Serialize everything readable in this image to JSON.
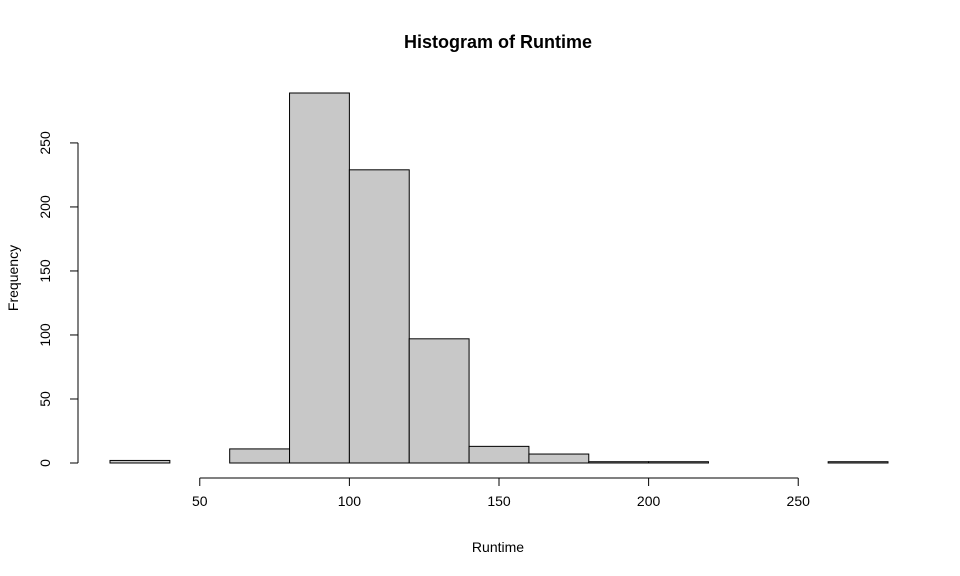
{
  "chart_data": {
    "type": "bar",
    "subtype": "histogram",
    "title": "Histogram of Runtime",
    "xlabel": "Runtime",
    "ylabel": "Frequency",
    "bin_edges": [
      20,
      40,
      60,
      80,
      100,
      120,
      140,
      160,
      180,
      200,
      220,
      240,
      260,
      280
    ],
    "values": [
      2,
      0,
      11,
      289,
      229,
      97,
      13,
      7,
      1,
      1,
      0,
      0,
      1
    ],
    "xlim": [
      20,
      280
    ],
    "ylim": [
      0,
      289
    ],
    "x_ticks": [
      50,
      100,
      150,
      200,
      250
    ],
    "x_tick_labels": [
      "50",
      "100",
      "150",
      "200",
      "250"
    ],
    "y_ticks": [
      0,
      50,
      100,
      150,
      200,
      250
    ],
    "y_tick_labels": [
      "0",
      "50",
      "100",
      "150",
      "200",
      "250"
    ],
    "grid": false,
    "bar_color": "#c8c8c8",
    "edge_color": "#000000"
  }
}
